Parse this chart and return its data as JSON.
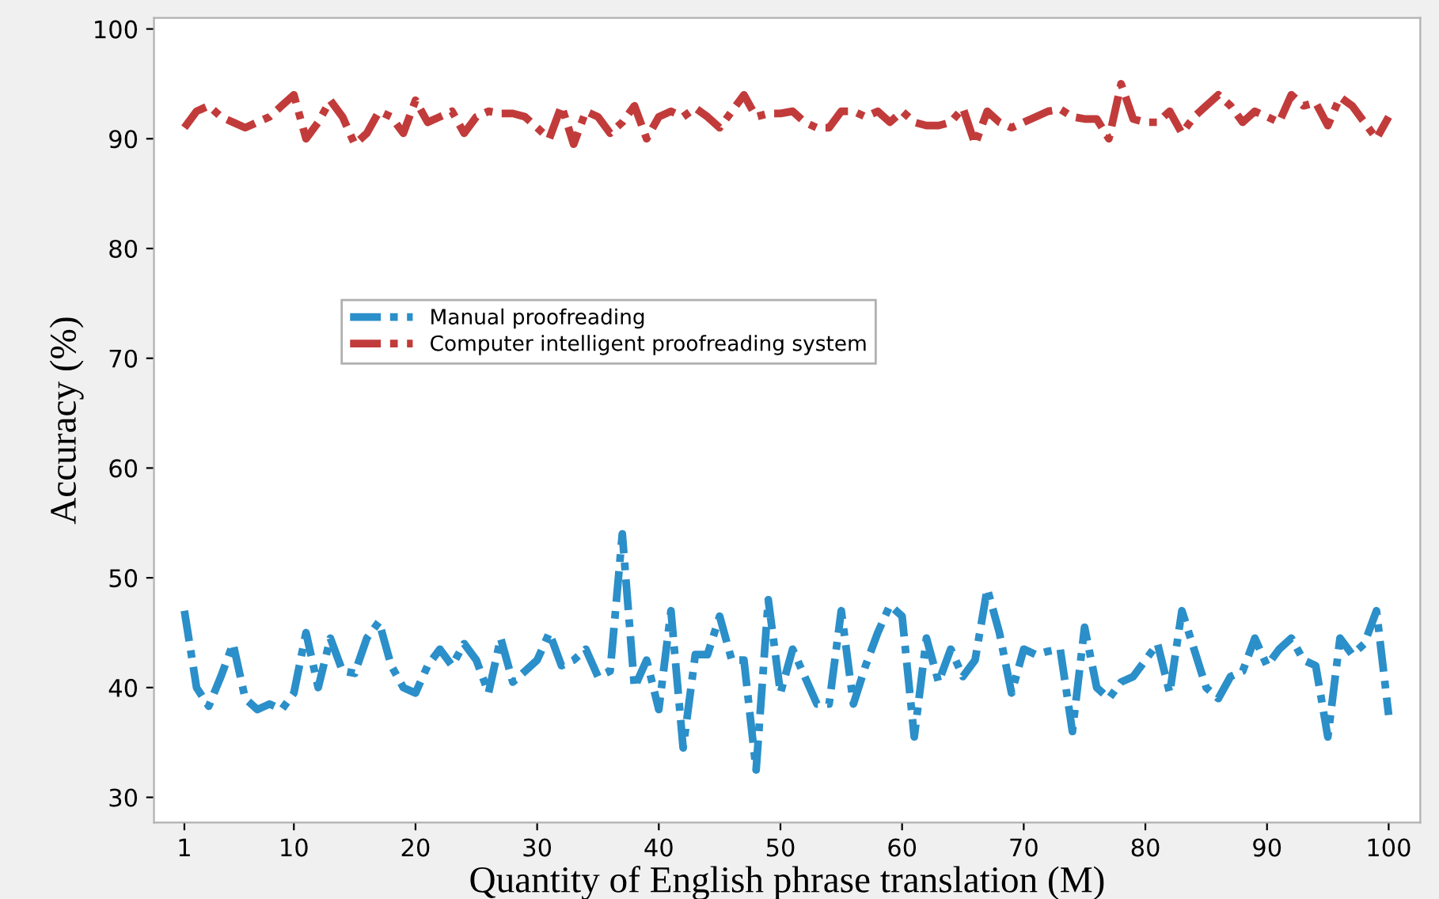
{
  "chart_data": {
    "type": "line",
    "xlabel": "Quantity of English phrase translation (M)",
    "ylabel": "Accuracy (%)",
    "x": [
      1,
      2,
      3,
      4,
      5,
      6,
      7,
      8,
      9,
      10,
      11,
      12,
      13,
      14,
      15,
      16,
      17,
      18,
      19,
      20,
      21,
      22,
      23,
      24,
      25,
      26,
      27,
      28,
      29,
      30,
      31,
      32,
      33,
      34,
      35,
      36,
      37,
      38,
      39,
      40,
      41,
      42,
      43,
      44,
      45,
      46,
      47,
      48,
      49,
      50,
      51,
      52,
      53,
      54,
      55,
      56,
      57,
      58,
      59,
      60,
      61,
      62,
      63,
      64,
      65,
      66,
      67,
      68,
      69,
      70,
      71,
      72,
      73,
      74,
      75,
      76,
      77,
      78,
      79,
      80,
      81,
      82,
      83,
      84,
      85,
      86,
      87,
      88,
      89,
      90,
      91,
      92,
      93,
      94,
      95,
      96,
      97,
      98,
      99,
      100
    ],
    "series": [
      {
        "name": "Manual proofreading",
        "color": "#2b8fc9",
        "values": [
          47,
          40,
          38.3,
          41,
          44,
          39,
          38,
          38.5,
          38,
          39.5,
          45,
          40,
          44.5,
          41.5,
          41.3,
          44.5,
          46,
          42,
          40,
          39.5,
          42,
          43.5,
          42,
          44,
          42.5,
          39.5,
          44.5,
          40.5,
          41.5,
          42.5,
          45,
          42,
          42.5,
          43.5,
          41,
          41.5,
          54,
          40,
          42.5,
          38,
          47,
          34.5,
          43,
          43,
          46.5,
          42.5,
          42.5,
          32.5,
          48,
          39.5,
          43.5,
          41,
          38.5,
          38.5,
          47,
          38.5,
          42,
          45,
          47.5,
          46.5,
          35.5,
          44.5,
          40.5,
          43.5,
          41,
          42.5,
          49,
          45,
          39.5,
          43.5,
          43,
          43.3,
          43.5,
          36,
          45.5,
          40,
          39,
          40.5,
          41,
          42.5,
          44,
          39.5,
          47,
          43.5,
          40,
          39,
          41,
          41.5,
          44.5,
          42,
          43.5,
          44.5,
          42.5,
          42,
          35.5,
          44.5,
          43,
          44,
          47,
          37.5
        ]
      },
      {
        "name": "Computer intelligent proofreading system",
        "color": "#c23b3b",
        "values": [
          91,
          92.5,
          93,
          92,
          91.5,
          91,
          91.5,
          92,
          93,
          94,
          90,
          91.5,
          93.5,
          92,
          89.5,
          90.5,
          92.5,
          92,
          90.5,
          93.5,
          91.5,
          92,
          92.5,
          90.5,
          92,
          92.5,
          92.3,
          92.3,
          92,
          91,
          90,
          93,
          89.5,
          92.5,
          92,
          90.5,
          91.5,
          93,
          90,
          92,
          92.5,
          92,
          92.8,
          92,
          91,
          92.5,
          94,
          92,
          92.3,
          92.3,
          92.5,
          91.5,
          91,
          91,
          92.5,
          92.5,
          92,
          92.5,
          91.5,
          92.5,
          91.5,
          91.2,
          91.2,
          91.5,
          92.8,
          89.5,
          92.5,
          91.5,
          91,
          91.5,
          92,
          92.5,
          92.7,
          92,
          91.8,
          91.8,
          90,
          95,
          91.8,
          91.5,
          91.5,
          92.5,
          90.5,
          92,
          93,
          94,
          93,
          91.5,
          92.5,
          92,
          91.5,
          94,
          93,
          93.3,
          91.2,
          93.8,
          93,
          91.5,
          90,
          92
        ]
      }
    ],
    "xlim": [
      -1.5,
      102.6
    ],
    "ylim": [
      27.7,
      101
    ],
    "xticks": [
      1,
      10,
      20,
      30,
      40,
      50,
      60,
      70,
      80,
      90,
      100
    ],
    "yticks": [
      30,
      40,
      50,
      60,
      70,
      80,
      90,
      100
    ],
    "grid": false,
    "legend": "center left",
    "marker": "none",
    "line_style": "dashdot"
  }
}
